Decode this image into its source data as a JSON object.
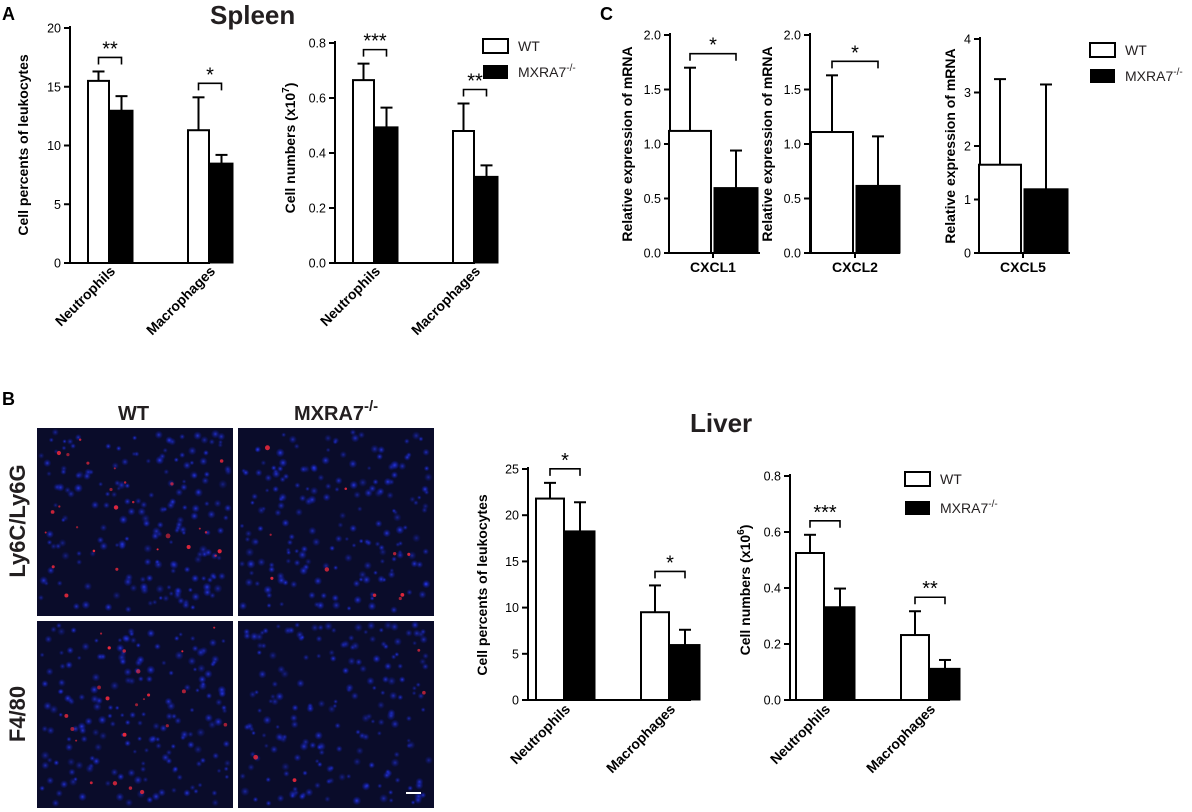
{
  "panels": {
    "A": "A",
    "B": "B",
    "C": "C"
  },
  "titles": {
    "spleen": "Spleen",
    "liver": "Liver"
  },
  "legend": {
    "wt": "WT",
    "ko": "MXRA7",
    "ko_sup": "-/-"
  },
  "microscopy": {
    "columns": [
      "WT",
      "MXRA7"
    ],
    "ko_sup": "-/-",
    "rows": [
      "Ly6C/Ly6G",
      "F4/80"
    ]
  },
  "chart_data": [
    {
      "id": "spleen-percent",
      "type": "bar",
      "categories": [
        "Neutrophils",
        "Macrophages"
      ],
      "ylabel": "Cell percents of leukocytes",
      "ylim": [
        0,
        20
      ],
      "yticks": [
        "0",
        "5",
        "10",
        "15",
        "20"
      ],
      "series": [
        {
          "name": "WT",
          "values": [
            15.5,
            11.3
          ],
          "errors": [
            0.8,
            2.8
          ]
        },
        {
          "name": "MXRA7-/-",
          "values": [
            13.0,
            8.5
          ],
          "errors": [
            1.2,
            0.7
          ]
        }
      ],
      "significance": [
        "**",
        "*"
      ]
    },
    {
      "id": "spleen-number",
      "type": "bar",
      "categories": [
        "Neutrophils",
        "Macrophages"
      ],
      "ylabel": "Cell numbers (x10",
      "ylabel_sup": "7",
      "ylim": [
        0,
        0.8
      ],
      "yticks": [
        "0.0",
        "0.2",
        "0.4",
        "0.6",
        "0.8"
      ],
      "series": [
        {
          "name": "WT",
          "values": [
            0.665,
            0.48
          ],
          "errors": [
            0.06,
            0.1
          ]
        },
        {
          "name": "MXRA7-/-",
          "values": [
            0.495,
            0.315
          ],
          "errors": [
            0.07,
            0.04
          ]
        }
      ],
      "significance": [
        "***",
        "**"
      ]
    },
    {
      "id": "cxcl1",
      "type": "bar",
      "categories": [
        "CXCL1"
      ],
      "ylabel": "Relative expression of mRNA",
      "ylim": [
        0,
        2.0
      ],
      "yticks": [
        "0.0",
        "0.5",
        "1.0",
        "1.5",
        "2.0"
      ],
      "series": [
        {
          "name": "WT",
          "values": [
            1.12
          ],
          "errors": [
            0.58
          ]
        },
        {
          "name": "MXRA7-/-",
          "values": [
            0.6
          ],
          "errors": [
            0.34
          ]
        }
      ],
      "significance": [
        "*"
      ]
    },
    {
      "id": "cxcl2",
      "type": "bar",
      "categories": [
        "CXCL2"
      ],
      "ylabel": "Relative expression of mRNA",
      "ylim": [
        0,
        2.0
      ],
      "yticks": [
        "0.0",
        "0.5",
        "1.0",
        "1.5",
        "2.0"
      ],
      "series": [
        {
          "name": "WT",
          "values": [
            1.11
          ],
          "errors": [
            0.52
          ]
        },
        {
          "name": "MXRA7-/-",
          "values": [
            0.62
          ],
          "errors": [
            0.45
          ]
        }
      ],
      "significance": [
        "*"
      ]
    },
    {
      "id": "cxcl5",
      "type": "bar",
      "categories": [
        "CXCL5"
      ],
      "ylabel": "Relative expression of mRNA",
      "ylim": [
        0,
        4
      ],
      "yticks": [
        "0",
        "1",
        "2",
        "3",
        "4"
      ],
      "series": [
        {
          "name": "WT",
          "values": [
            1.65
          ],
          "errors": [
            1.6
          ]
        },
        {
          "name": "MXRA7-/-",
          "values": [
            1.2
          ],
          "errors": [
            1.95
          ]
        }
      ],
      "significance": []
    },
    {
      "id": "liver-percent",
      "type": "bar",
      "categories": [
        "Neutrophils",
        "Macrophages"
      ],
      "ylabel": "Cell percents of leukocytes",
      "ylim": [
        0,
        25
      ],
      "yticks": [
        "0",
        "5",
        "10",
        "15",
        "20",
        "25"
      ],
      "series": [
        {
          "name": "WT",
          "values": [
            21.8,
            9.5
          ],
          "errors": [
            1.7,
            2.9
          ]
        },
        {
          "name": "MXRA7-/-",
          "values": [
            18.3,
            6.0
          ],
          "errors": [
            3.1,
            1.6
          ]
        }
      ],
      "significance": [
        "*",
        "*"
      ]
    },
    {
      "id": "liver-number",
      "type": "bar",
      "categories": [
        "Neutrophils",
        "Macrophages"
      ],
      "ylabel": "Cell numbers (x10",
      "ylabel_sup": "6",
      "ylim": [
        0,
        0.8
      ],
      "yticks": [
        "0.0",
        "0.2",
        "0.4",
        "0.6",
        "0.8"
      ],
      "series": [
        {
          "name": "WT",
          "values": [
            0.525,
            0.232
          ],
          "errors": [
            0.065,
            0.085
          ]
        },
        {
          "name": "MXRA7-/-",
          "values": [
            0.333,
            0.113
          ],
          "errors": [
            0.065,
            0.03
          ]
        }
      ],
      "significance": [
        "***",
        "**"
      ]
    }
  ]
}
